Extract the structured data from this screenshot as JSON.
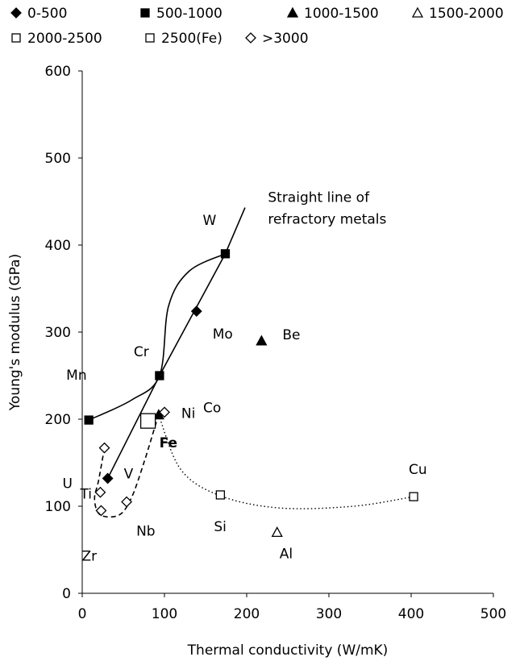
{
  "chart_data": {
    "type": "scatter",
    "xlabel": "Thermal conductivity (W/mK)",
    "ylabel": "Young's modulus (GPa)",
    "xlim": [
      0,
      500
    ],
    "ylim": [
      0,
      600
    ],
    "xticks": [
      0,
      100,
      200,
      300,
      400,
      500
    ],
    "yticks": [
      0,
      100,
      200,
      300,
      400,
      500,
      600
    ],
    "grid": false,
    "legend_position": "top",
    "legend": [
      {
        "label": "0-500",
        "marker": "filled-diamond"
      },
      {
        "label": "500-1000",
        "marker": "filled-square"
      },
      {
        "label": "1000-1500",
        "marker": "filled-triangle"
      },
      {
        "label": "1500-2000",
        "marker": "open-triangle"
      },
      {
        "label": "2000-2500",
        "marker": "open-square"
      },
      {
        "label": "2500(Fe)",
        "marker": "open-square"
      },
      {
        "label": ">3000",
        "marker": "open-diamond"
      }
    ],
    "points": [
      {
        "label": "W",
        "x": 174,
        "y": 390,
        "marker": "filled-square"
      },
      {
        "label": "Mo",
        "x": 139,
        "y": 324,
        "marker": "filled-diamond"
      },
      {
        "label": "Be",
        "x": 218,
        "y": 290,
        "marker": "filled-triangle"
      },
      {
        "label": "Cr",
        "x": 94,
        "y": 250,
        "marker": "filled-square"
      },
      {
        "label": "Mn",
        "x": 8,
        "y": 199,
        "marker": "filled-square"
      },
      {
        "label": "Ni",
        "x": 93,
        "y": 205,
        "marker": "filled-triangle"
      },
      {
        "label": "Co",
        "x": 100,
        "y": 208,
        "marker": "open-diamond"
      },
      {
        "label": "U",
        "x": 27,
        "y": 167,
        "marker": "open-diamond"
      },
      {
        "label": "Fe",
        "x": 80,
        "y": 198,
        "marker": "large-open-square"
      },
      {
        "label": "V",
        "x": 31,
        "y": 132,
        "marker": "filled-diamond"
      },
      {
        "label": "Ti",
        "x": 22,
        "y": 116,
        "marker": "open-diamond"
      },
      {
        "label": "Zr",
        "x": 23,
        "y": 95,
        "marker": "open-diamond"
      },
      {
        "label": "Nb",
        "x": 54,
        "y": 105,
        "marker": "open-diamond"
      },
      {
        "label": "Si",
        "x": 168,
        "y": 113,
        "marker": "open-square"
      },
      {
        "label": "Cu",
        "x": 403,
        "y": 111,
        "marker": "open-square"
      },
      {
        "label": "Al",
        "x": 237,
        "y": 70,
        "marker": "open-triangle"
      }
    ],
    "annotations": [
      {
        "text": "Straight line of",
        "x": 218,
        "y": 455
      },
      {
        "text": "refractory metals",
        "x": 218,
        "y": 430
      }
    ],
    "lines": [
      {
        "style": "solid",
        "points": [
          [
            31,
            132
          ],
          [
            94,
            250
          ],
          [
            174,
            390
          ],
          [
            198,
            443
          ]
        ]
      },
      {
        "style": "solid-curve",
        "points": [
          [
            8,
            199
          ],
          [
            60,
            222
          ],
          [
            94,
            250
          ],
          [
            105,
            330
          ],
          [
            130,
            370
          ],
          [
            174,
            390
          ]
        ]
      },
      {
        "style": "dashed",
        "points": [
          [
            27,
            167
          ],
          [
            20,
            130
          ],
          [
            15,
            108
          ],
          [
            22,
            90
          ],
          [
            45,
            90
          ],
          [
            60,
            110
          ],
          [
            75,
            150
          ],
          [
            88,
            190
          ],
          [
            93,
            205
          ]
        ]
      },
      {
        "style": "dotted",
        "points": [
          [
            93,
            205
          ],
          [
            120,
            142
          ],
          [
            168,
            112
          ],
          [
            240,
            98
          ],
          [
            330,
            100
          ],
          [
            403,
            111
          ]
        ]
      }
    ]
  }
}
